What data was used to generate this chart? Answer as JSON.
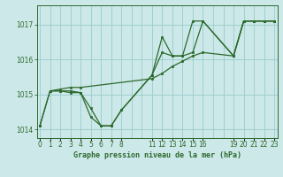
{
  "title": "Graphe pression niveau de la mer (hPa)",
  "bg_color": "#cce8e8",
  "plot_bg_color": "#cce8e8",
  "line_color": "#2d6a2d",
  "marker_color": "#2d6a2d",
  "grid_color": "#99cccc",
  "ylim": [
    1013.75,
    1017.55
  ],
  "yticks": [
    1014,
    1015,
    1016,
    1017
  ],
  "xlim": [
    -0.3,
    23.3
  ],
  "xticks": [
    0,
    1,
    2,
    3,
    4,
    5,
    6,
    7,
    8,
    11,
    12,
    13,
    14,
    15,
    16,
    19,
    20,
    21,
    22,
    23
  ],
  "series1": [
    [
      0,
      1014.1
    ],
    [
      1,
      1015.1
    ],
    [
      2,
      1015.1
    ],
    [
      3,
      1015.05
    ],
    [
      4,
      1015.05
    ],
    [
      5,
      1014.35
    ],
    [
      6,
      1014.1
    ],
    [
      7,
      1014.1
    ],
    [
      8,
      1014.55
    ],
    [
      11,
      1015.55
    ],
    [
      12,
      1016.65
    ],
    [
      13,
      1016.1
    ],
    [
      14,
      1016.1
    ],
    [
      15,
      1017.1
    ],
    [
      16,
      1017.1
    ],
    [
      19,
      1016.1
    ],
    [
      20,
      1017.1
    ],
    [
      21,
      1017.1
    ],
    [
      22,
      1017.1
    ],
    [
      23,
      1017.1
    ]
  ],
  "series2": [
    [
      0,
      1014.1
    ],
    [
      1,
      1015.1
    ],
    [
      2,
      1015.15
    ],
    [
      3,
      1015.2
    ],
    [
      4,
      1015.2
    ],
    [
      11,
      1015.45
    ],
    [
      12,
      1015.6
    ],
    [
      13,
      1015.8
    ],
    [
      14,
      1015.95
    ],
    [
      15,
      1016.1
    ],
    [
      16,
      1016.2
    ],
    [
      19,
      1016.1
    ],
    [
      20,
      1017.1
    ],
    [
      21,
      1017.1
    ],
    [
      22,
      1017.1
    ],
    [
      23,
      1017.1
    ]
  ],
  "series3": [
    [
      1,
      1015.1
    ],
    [
      2,
      1015.1
    ],
    [
      3,
      1015.1
    ],
    [
      4,
      1015.05
    ],
    [
      5,
      1014.6
    ],
    [
      6,
      1014.1
    ],
    [
      7,
      1014.1
    ],
    [
      8,
      1014.55
    ],
    [
      11,
      1015.55
    ],
    [
      12,
      1016.2
    ],
    [
      13,
      1016.1
    ],
    [
      14,
      1016.1
    ],
    [
      15,
      1016.2
    ],
    [
      16,
      1017.1
    ],
    [
      19,
      1016.1
    ],
    [
      20,
      1017.1
    ],
    [
      21,
      1017.1
    ],
    [
      22,
      1017.1
    ],
    [
      23,
      1017.1
    ]
  ],
  "title_fontsize": 6,
  "tick_fontsize": 5.5,
  "linewidth": 0.9,
  "markersize": 2.0
}
